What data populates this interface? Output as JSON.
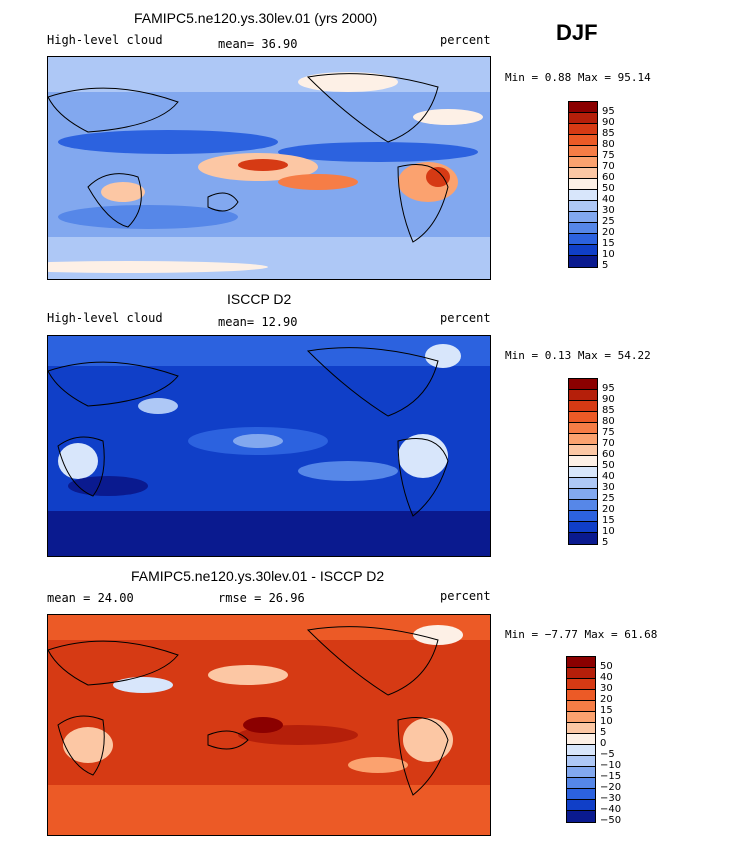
{
  "season": "DJF",
  "panels": [
    {
      "title": "FAMIPC5.ne120.ys.30lev.01 (yrs 2000)",
      "left_label": "High-level cloud",
      "mid_label": "mean=  36.90",
      "right_label": "percent",
      "minmax": "Min =   0.88 Max =  95.14",
      "levels": [
        "95",
        "90",
        "85",
        "80",
        "75",
        "70",
        "60",
        "50",
        "40",
        "30",
        "25",
        "20",
        "15",
        "10",
        "5"
      ],
      "colors": [
        "#8b0000",
        "#b51f0a",
        "#d63a14",
        "#ec5a26",
        "#f67d46",
        "#fba26f",
        "#fcc7a4",
        "#fdf0e6",
        "#d8e6fb",
        "#aec8f6",
        "#82a8ef",
        "#5687e8",
        "#2c62df",
        "#103fc8",
        "#0a1a8f"
      ]
    },
    {
      "title": "ISCCP D2",
      "left_label": "High-level cloud",
      "mid_label": "mean=  12.90",
      "right_label": "percent",
      "minmax": "Min =   0.13 Max =  54.22",
      "levels": [
        "95",
        "90",
        "85",
        "80",
        "75",
        "70",
        "60",
        "50",
        "40",
        "30",
        "25",
        "20",
        "15",
        "10",
        "5"
      ],
      "colors": [
        "#8b0000",
        "#b51f0a",
        "#d63a14",
        "#ec5a26",
        "#f67d46",
        "#fba26f",
        "#fcc7a4",
        "#fdf0e6",
        "#d8e6fb",
        "#aec8f6",
        "#82a8ef",
        "#5687e8",
        "#2c62df",
        "#103fc8",
        "#0a1a8f"
      ]
    },
    {
      "title": "FAMIPC5.ne120.ys.30lev.01 - ISCCP D2",
      "left_label": "mean =  24.00",
      "mid_label": "rmse =  26.96",
      "right_label": "percent",
      "minmax": "Min =  −7.77 Max =  61.68",
      "levels": [
        "50",
        "40",
        "30",
        "20",
        "15",
        "10",
        "5",
        "0",
        "−5",
        "−10",
        "−15",
        "−20",
        "−30",
        "−40",
        "−50"
      ],
      "colors": [
        "#8b0000",
        "#b51f0a",
        "#d63a14",
        "#ec5a26",
        "#f67d46",
        "#fba26f",
        "#fcc7a4",
        "#fdf0e6",
        "#d8e6fb",
        "#aec8f6",
        "#82a8ef",
        "#5687e8",
        "#2c62df",
        "#103fc8",
        "#0a1a8f"
      ]
    }
  ],
  "chart_data": [
    {
      "type": "heatmap",
      "title": "FAMIPC5.ne120.ys.30lev.01 (yrs 2000)",
      "variable": "High-level cloud",
      "units": "percent",
      "mean": 36.9,
      "min": 0.88,
      "max": 95.14,
      "contour_levels": [
        5,
        10,
        15,
        20,
        25,
        30,
        40,
        50,
        60,
        70,
        75,
        80,
        85,
        90,
        95
      ]
    },
    {
      "type": "heatmap",
      "title": "ISCCP D2",
      "variable": "High-level cloud",
      "units": "percent",
      "mean": 12.9,
      "min": 0.13,
      "max": 54.22,
      "contour_levels": [
        5,
        10,
        15,
        20,
        25,
        30,
        40,
        50,
        60,
        70,
        75,
        80,
        85,
        90,
        95
      ]
    },
    {
      "type": "heatmap",
      "title": "FAMIPC5.ne120.ys.30lev.01 - ISCCP D2",
      "units": "percent",
      "mean": 24.0,
      "rmse": 26.96,
      "min": -7.77,
      "max": 61.68,
      "contour_levels": [
        -50,
        -40,
        -30,
        -20,
        -15,
        -10,
        -5,
        0,
        5,
        10,
        15,
        20,
        30,
        40,
        50
      ]
    }
  ]
}
